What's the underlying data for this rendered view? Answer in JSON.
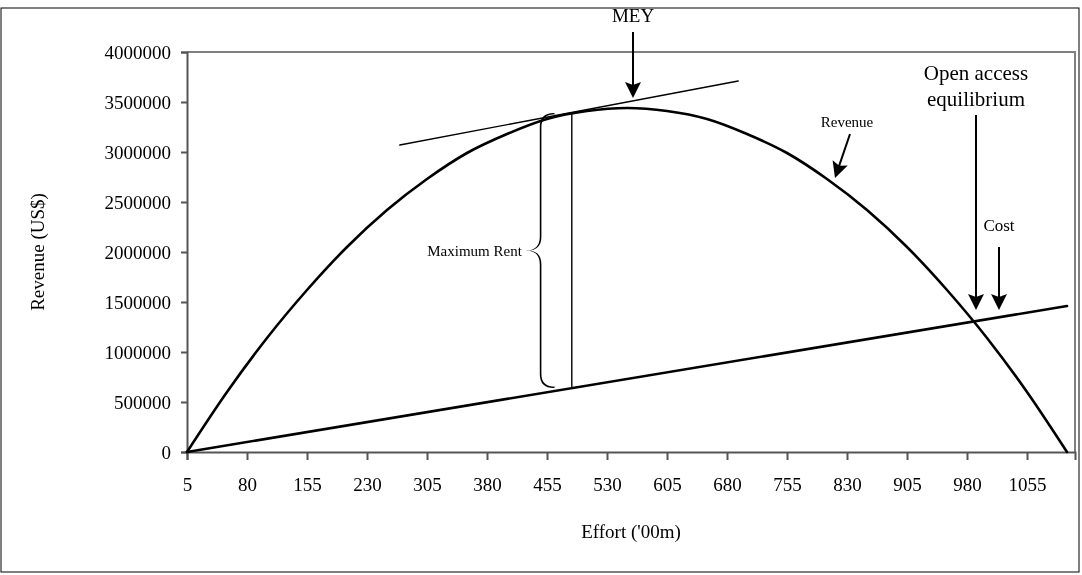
{
  "chart_data": {
    "type": "line",
    "xlabel": "Effort ('00m)",
    "ylabel": "Revenue (US$)",
    "xlim": [
      5,
      1115
    ],
    "xticks": [
      5,
      80,
      155,
      230,
      305,
      380,
      455,
      530,
      605,
      680,
      755,
      830,
      905,
      980,
      1055
    ],
    "ylim": [
      0,
      4000000
    ],
    "yticks": [
      0,
      500000,
      1000000,
      1500000,
      2000000,
      2500000,
      3000000,
      3500000,
      4000000
    ],
    "grid": false,
    "marker": "none",
    "line_style": "solid",
    "series": [
      {
        "color": "#000000",
        "x": [
          5,
          55,
          105,
          155,
          205,
          255,
          305,
          355,
          405,
          455,
          505,
          555,
          605,
          655,
          705,
          755,
          805,
          855,
          905,
          955,
          1005,
          1055,
          1105
        ],
        "values": [
          0,
          600000,
          1140000,
          1620000,
          2050000,
          2420000,
          2730000,
          2990000,
          3180000,
          3330000,
          3410000,
          3440000,
          3410000,
          3330000,
          3180000,
          2990000,
          2730000,
          2420000,
          2050000,
          1620000,
          1140000,
          600000,
          0
        ]
      },
      {
        "color": "#000000",
        "x": [
          5,
          1105
        ],
        "values": [
          0,
          1460000
        ]
      },
      {
        "color": "#000000",
        "x": [
          271,
          694
        ],
        "values": [
          3070000,
          3710000
        ]
      },
      {
        "color": "#000000",
        "x": [
          486,
          486
        ],
        "values": [
          640000,
          3390000
        ]
      }
    ],
    "annotations": [
      "MEY",
      "Revenue",
      "Open access equilibrium",
      "Cost",
      "Maximum Rent"
    ]
  }
}
